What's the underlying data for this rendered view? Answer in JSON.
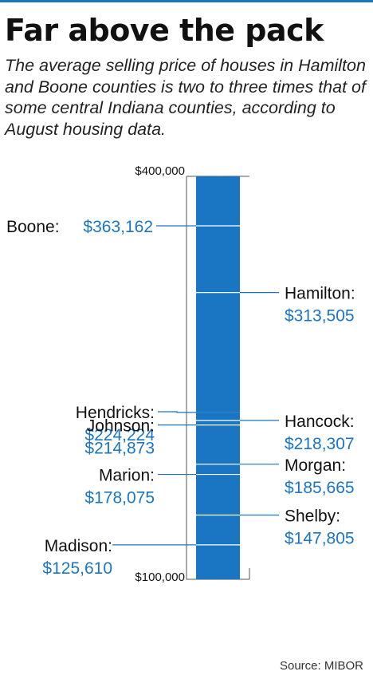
{
  "title": "Far above the pack",
  "subtitle": "The average selling price of houses in Hamilton and Boone counties is two to three times that of some central Indiana counties, according to August housing data.",
  "source": "Source: MIBOR",
  "chart_data": {
    "type": "bar",
    "categories": [
      "Average selling price"
    ],
    "values": [
      400000
    ],
    "ylim": [
      100000,
      400000
    ],
    "ytick_labels": [
      "$100,000",
      "$400,000"
    ],
    "bar_color": "#1a76c2",
    "value_color": "#1a76c2",
    "annotations": [
      {
        "name": "Boone:",
        "value_label": "$363,162",
        "value": 363162,
        "side": "left"
      },
      {
        "name": "Hamilton:",
        "value_label": "$313,505",
        "value": 313505,
        "side": "right"
      },
      {
        "name": "Hendricks:",
        "value_label": "$224,224",
        "value": 224224,
        "side": "left"
      },
      {
        "name": "Hancock:",
        "value_label": "$218,307",
        "value": 218307,
        "side": "right"
      },
      {
        "name": "Johnson:",
        "value_label": "$214,873",
        "value": 214873,
        "side": "left"
      },
      {
        "name": "Morgan:",
        "value_label": "$185,665",
        "value": 185665,
        "side": "right"
      },
      {
        "name": "Marion:",
        "value_label": "$178,075",
        "value": 178075,
        "side": "left"
      },
      {
        "name": "Shelby:",
        "value_label": "$147,805",
        "value": 147805,
        "side": "right"
      },
      {
        "name": "Madison:",
        "value_label": "$125,610",
        "value": 125610,
        "side": "left"
      }
    ]
  }
}
